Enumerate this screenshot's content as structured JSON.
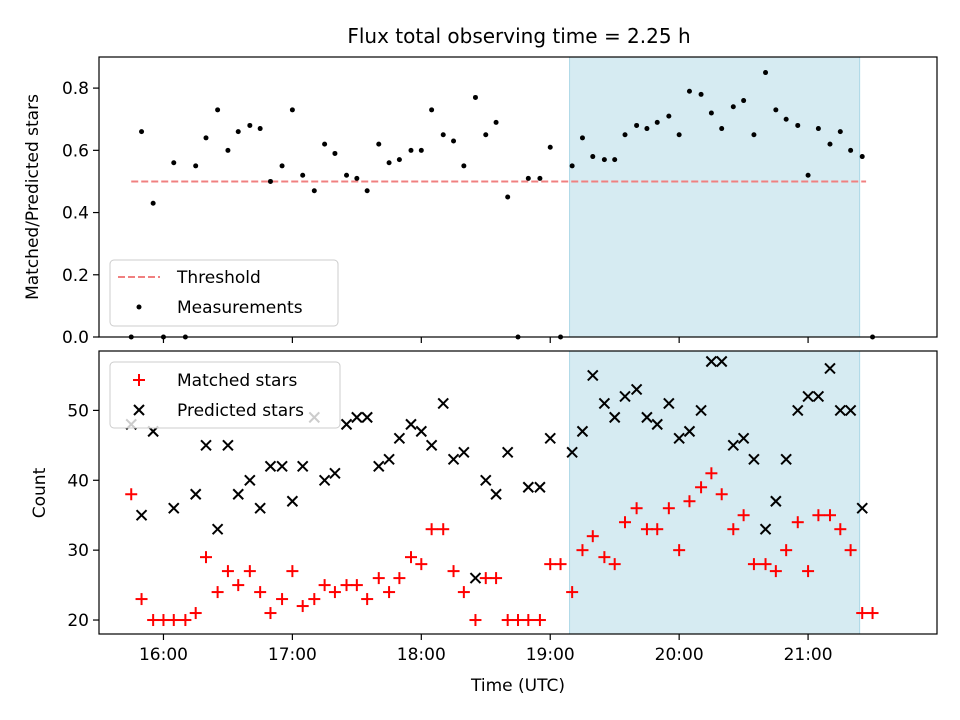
{
  "title": "Flux total observing time = 2.25 h",
  "colors": {
    "threshold": "#f08080",
    "measurement": "#000000",
    "matched": "#ff0000",
    "predicted": "#000000",
    "highlight": "#add8e6"
  },
  "chart_data": [
    {
      "type": "scatter",
      "ylabel": "Matched/Predicted stars",
      "ylim": [
        0,
        0.9
      ],
      "yticks": [
        0.0,
        0.2,
        0.4,
        0.6,
        0.8
      ],
      "ytick_labels": [
        "0.0",
        "0.2",
        "0.4",
        "0.6",
        "0.8"
      ],
      "xlim": [
        15.5,
        22.0
      ],
      "highlight_span": [
        19.15,
        21.4
      ],
      "threshold": {
        "y": 0.5,
        "x": [
          15.75,
          21.45
        ]
      },
      "legend": {
        "placement": "lower-left",
        "threshold_label": "Threshold",
        "measurements_label": "Measurements"
      },
      "measurements": {
        "x": [
          15.75,
          15.83,
          15.92,
          16.0,
          16.08,
          16.17,
          16.25,
          16.33,
          16.42,
          16.5,
          16.58,
          16.67,
          16.75,
          16.83,
          16.92,
          17.0,
          17.08,
          17.17,
          17.25,
          17.33,
          17.42,
          17.5,
          17.58,
          17.67,
          17.75,
          17.83,
          17.92,
          18.0,
          18.08,
          18.17,
          18.25,
          18.33,
          18.42,
          18.5,
          18.58,
          18.67,
          18.75,
          18.83,
          18.92,
          19.0,
          19.08,
          19.17,
          19.25,
          19.33,
          19.42,
          19.5,
          19.58,
          19.67,
          19.75,
          19.83,
          19.92,
          20.0,
          20.08,
          20.17,
          20.25,
          20.33,
          20.42,
          20.5,
          20.58,
          20.67,
          20.75,
          20.83,
          20.92,
          21.0,
          21.08,
          21.17,
          21.25,
          21.33,
          21.42,
          21.5
        ],
        "y": [
          0.0,
          0.66,
          0.43,
          0.0,
          0.56,
          0.0,
          0.55,
          0.64,
          0.73,
          0.6,
          0.66,
          0.68,
          0.67,
          0.5,
          0.55,
          0.73,
          0.52,
          0.47,
          0.62,
          0.59,
          0.52,
          0.51,
          0.47,
          0.62,
          0.56,
          0.57,
          0.6,
          0.6,
          0.73,
          0.65,
          0.63,
          0.55,
          0.77,
          0.65,
          0.69,
          0.45,
          0.0,
          0.51,
          0.51,
          0.61,
          0.0,
          0.55,
          0.64,
          0.58,
          0.57,
          0.57,
          0.65,
          0.68,
          0.67,
          0.69,
          0.71,
          0.65,
          0.79,
          0.78,
          0.72,
          0.67,
          0.74,
          0.76,
          0.65,
          0.85,
          0.73,
          0.7,
          0.68,
          0.52,
          0.67,
          0.62,
          0.66,
          0.6,
          0.58,
          0.0
        ]
      }
    },
    {
      "type": "scatter",
      "ylabel": "Count",
      "xlabel": "Time (UTC)",
      "ylim": [
        18,
        58.5
      ],
      "yticks": [
        20,
        30,
        40,
        50
      ],
      "ytick_labels": [
        "20",
        "30",
        "40",
        "50"
      ],
      "xlim": [
        15.5,
        22.0
      ],
      "xticks": [
        16,
        17,
        18,
        19,
        20,
        21
      ],
      "xtick_labels": [
        "16:00",
        "17:00",
        "18:00",
        "19:00",
        "20:00",
        "21:00"
      ],
      "highlight_span": [
        19.15,
        21.4
      ],
      "legend": {
        "placement": "upper-left",
        "matched_label": "Matched stars",
        "predicted_label": "Predicted stars"
      },
      "matched": {
        "x": [
          15.75,
          15.83,
          15.92,
          16.0,
          16.08,
          16.17,
          16.25,
          16.33,
          16.42,
          16.5,
          16.58,
          16.67,
          16.75,
          16.83,
          16.92,
          17.0,
          17.08,
          17.17,
          17.25,
          17.33,
          17.42,
          17.5,
          17.58,
          17.67,
          17.75,
          17.83,
          17.92,
          18.0,
          18.08,
          18.17,
          18.25,
          18.33,
          18.42,
          18.5,
          18.58,
          18.67,
          18.75,
          18.83,
          18.92,
          19.0,
          19.08,
          19.17,
          19.25,
          19.33,
          19.42,
          19.5,
          19.58,
          19.67,
          19.75,
          19.83,
          19.92,
          20.0,
          20.08,
          20.17,
          20.25,
          20.33,
          20.42,
          20.5,
          20.58,
          20.67,
          20.75,
          20.83,
          20.92,
          21.0,
          21.08,
          21.17,
          21.25,
          21.33,
          21.42,
          21.5
        ],
        "y": [
          38,
          23,
          20,
          20,
          20,
          20,
          21,
          29,
          24,
          27,
          25,
          27,
          24,
          21,
          23,
          27,
          22,
          23,
          25,
          24,
          25,
          25,
          23,
          26,
          24,
          26,
          29,
          28,
          33,
          33,
          27,
          24,
          20,
          26,
          26,
          20,
          20,
          20,
          20,
          28,
          28,
          24,
          30,
          32,
          29,
          28,
          34,
          36,
          33,
          33,
          36,
          30,
          37,
          39,
          41,
          38,
          33,
          35,
          28,
          28,
          27,
          30,
          34,
          27,
          35,
          35,
          33,
          30,
          21,
          21
        ]
      },
      "predicted": {
        "x": [
          15.75,
          15.83,
          15.92,
          16.08,
          16.25,
          16.33,
          16.42,
          16.5,
          16.58,
          16.67,
          16.75,
          16.83,
          16.92,
          17.0,
          17.08,
          17.17,
          17.25,
          17.33,
          17.42,
          17.5,
          17.58,
          17.67,
          17.75,
          17.83,
          17.92,
          18.0,
          18.08,
          18.17,
          18.25,
          18.33,
          18.42,
          18.5,
          18.58,
          18.67,
          18.83,
          18.92,
          19.0,
          19.17,
          19.25,
          19.33,
          19.42,
          19.5,
          19.58,
          19.67,
          19.75,
          19.83,
          19.92,
          20.0,
          20.08,
          20.17,
          20.25,
          20.33,
          20.42,
          20.5,
          20.58,
          20.67,
          20.75,
          20.83,
          20.92,
          21.0,
          21.08,
          21.17,
          21.25,
          21.33,
          21.42
        ],
        "y": [
          48,
          35,
          47,
          36,
          38,
          45,
          33,
          45,
          38,
          40,
          36,
          42,
          42,
          37,
          42,
          49,
          40,
          41,
          48,
          49,
          49,
          42,
          43,
          46,
          48,
          47,
          45,
          51,
          43,
          44,
          26,
          40,
          38,
          44,
          39,
          39,
          46,
          44,
          47,
          55,
          51,
          49,
          52,
          53,
          49,
          48,
          51,
          46,
          47,
          50,
          57,
          57,
          45,
          46,
          43,
          33,
          37,
          43,
          50,
          52,
          52,
          56,
          50,
          50,
          36
        ]
      }
    }
  ]
}
